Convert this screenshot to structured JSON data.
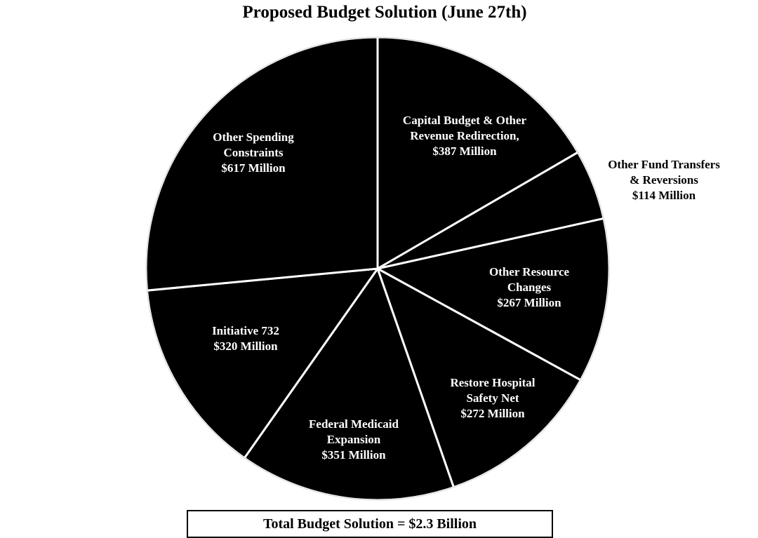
{
  "chart_data": {
    "type": "pie",
    "title": "Proposed Budget Solution (June 27th)",
    "unit": "Million",
    "slices": [
      {
        "label_lines": [
          "Capital Budget & Other",
          "Revenue Redirection,",
          "$387 Million"
        ],
        "value": 387
      },
      {
        "label_lines": [
          "Other Fund Transfers",
          "& Reversions",
          "$114 Million"
        ],
        "value": 114
      },
      {
        "label_lines": [
          "Other Resource",
          "Changes",
          "$267 Million"
        ],
        "value": 267
      },
      {
        "label_lines": [
          "Restore Hospital",
          "Safety Net",
          "$272 Million"
        ],
        "value": 272
      },
      {
        "label_lines": [
          "Federal Medicaid",
          "Expansion",
          "$351 Million"
        ],
        "value": 351
      },
      {
        "label_lines": [
          "Initiative 732",
          "$320 Million"
        ],
        "value": 320
      },
      {
        "label_lines": [
          "Other Spending",
          "Constraints",
          "$617 Million"
        ],
        "value": 617
      }
    ],
    "total_label": "Total Budget Solution = $2.3 Billion",
    "colors": {
      "slice_fill": "#000000",
      "slice_border": "#ffffff",
      "label_inside": "#ffffff",
      "label_outside": "#000000"
    }
  }
}
